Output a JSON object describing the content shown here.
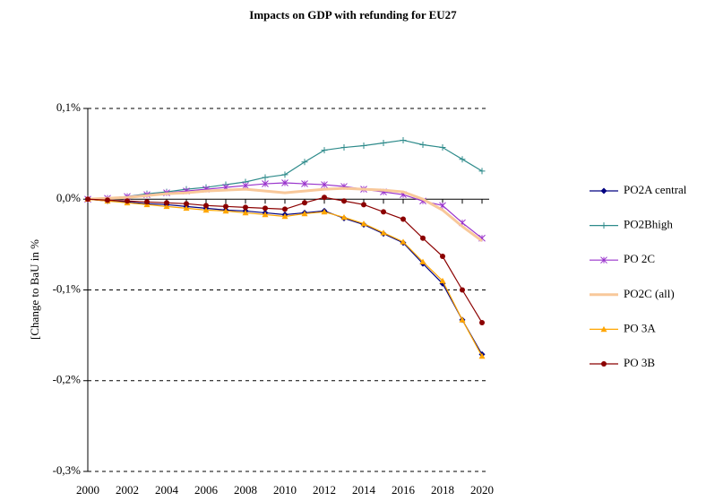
{
  "chart_data": {
    "type": "line",
    "title": "Impacts on GDP with refunding for EU27",
    "y_label": "[Change to BaU in %",
    "x": [
      2000,
      2001,
      2002,
      2003,
      2004,
      2005,
      2006,
      2007,
      2008,
      2009,
      2010,
      2011,
      2012,
      2013,
      2014,
      2015,
      2016,
      2017,
      2018,
      2019,
      2020
    ],
    "xlim": [
      2000,
      2020
    ],
    "xticks": [
      2000,
      2002,
      2004,
      2006,
      2008,
      2010,
      2012,
      2014,
      2016,
      2018,
      2020
    ],
    "ylim": [
      -0.3,
      0.1
    ],
    "yticks": [
      {
        "value": 0.1,
        "label": "0,1%"
      },
      {
        "value": 0,
        "label": "0,0%"
      },
      {
        "value": -0.1,
        "label": "-0,1%"
      },
      {
        "value": -0.2,
        "label": "-0,2%"
      },
      {
        "value": -0.3,
        "label": "-0,3%"
      }
    ],
    "grid": true,
    "legend": "right",
    "series": [
      {
        "name": "PO2A central",
        "color": "#000080",
        "marker": "diamond",
        "values": [
          0,
          -0.002,
          -0.003,
          -0.005,
          -0.006,
          -0.008,
          -0.01,
          -0.012,
          -0.013,
          -0.015,
          -0.017,
          -0.015,
          -0.013,
          -0.021,
          -0.028,
          -0.038,
          -0.048,
          -0.071,
          -0.093,
          -0.133,
          -0.171
        ]
      },
      {
        "name": "PO2Bhigh",
        "color": "#2e8b8b",
        "marker": "plus",
        "values": [
          0,
          0.001,
          0.003,
          0.006,
          0.008,
          0.011,
          0.013,
          0.016,
          0.019,
          0.024,
          0.027,
          0.041,
          0.054,
          0.057,
          0.059,
          0.062,
          0.065,
          0.06,
          0.057,
          0.044,
          0.031
        ]
      },
      {
        "name": "PO 2C",
        "color": "#9933cc",
        "marker": "star",
        "values": [
          0,
          0.001,
          0.003,
          0.005,
          0.007,
          0.009,
          0.011,
          0.013,
          0.015,
          0.017,
          0.018,
          0.017,
          0.016,
          0.014,
          0.011,
          0.008,
          0.005,
          -0.002,
          -0.007,
          -0.026,
          -0.043
        ]
      },
      {
        "name": "PO2C (all)",
        "color": "#f8c89a",
        "marker": "none",
        "values": [
          0,
          0.001,
          0.002,
          0.004,
          0.006,
          0.007,
          0.009,
          0.01,
          0.011,
          0.009,
          0.007,
          0.009,
          0.011,
          0.012,
          0.011,
          0.01,
          0.008,
          0.0,
          -0.012,
          -0.03,
          -0.046
        ]
      },
      {
        "name": "PO 3A",
        "color": "#ffa500",
        "marker": "triangle",
        "values": [
          0,
          -0.002,
          -0.004,
          -0.006,
          -0.008,
          -0.01,
          -0.012,
          -0.013,
          -0.015,
          -0.017,
          -0.019,
          -0.016,
          -0.014,
          -0.02,
          -0.027,
          -0.037,
          -0.047,
          -0.069,
          -0.09,
          -0.133,
          -0.173
        ]
      },
      {
        "name": "PO 3B",
        "color": "#8b0000",
        "marker": "circle",
        "values": [
          0,
          -0.001,
          -0.002,
          -0.003,
          -0.004,
          -0.005,
          -0.007,
          -0.008,
          -0.009,
          -0.01,
          -0.011,
          -0.004,
          0.002,
          -0.002,
          -0.006,
          -0.014,
          -0.022,
          -0.043,
          -0.063,
          -0.1,
          -0.136
        ]
      }
    ]
  }
}
